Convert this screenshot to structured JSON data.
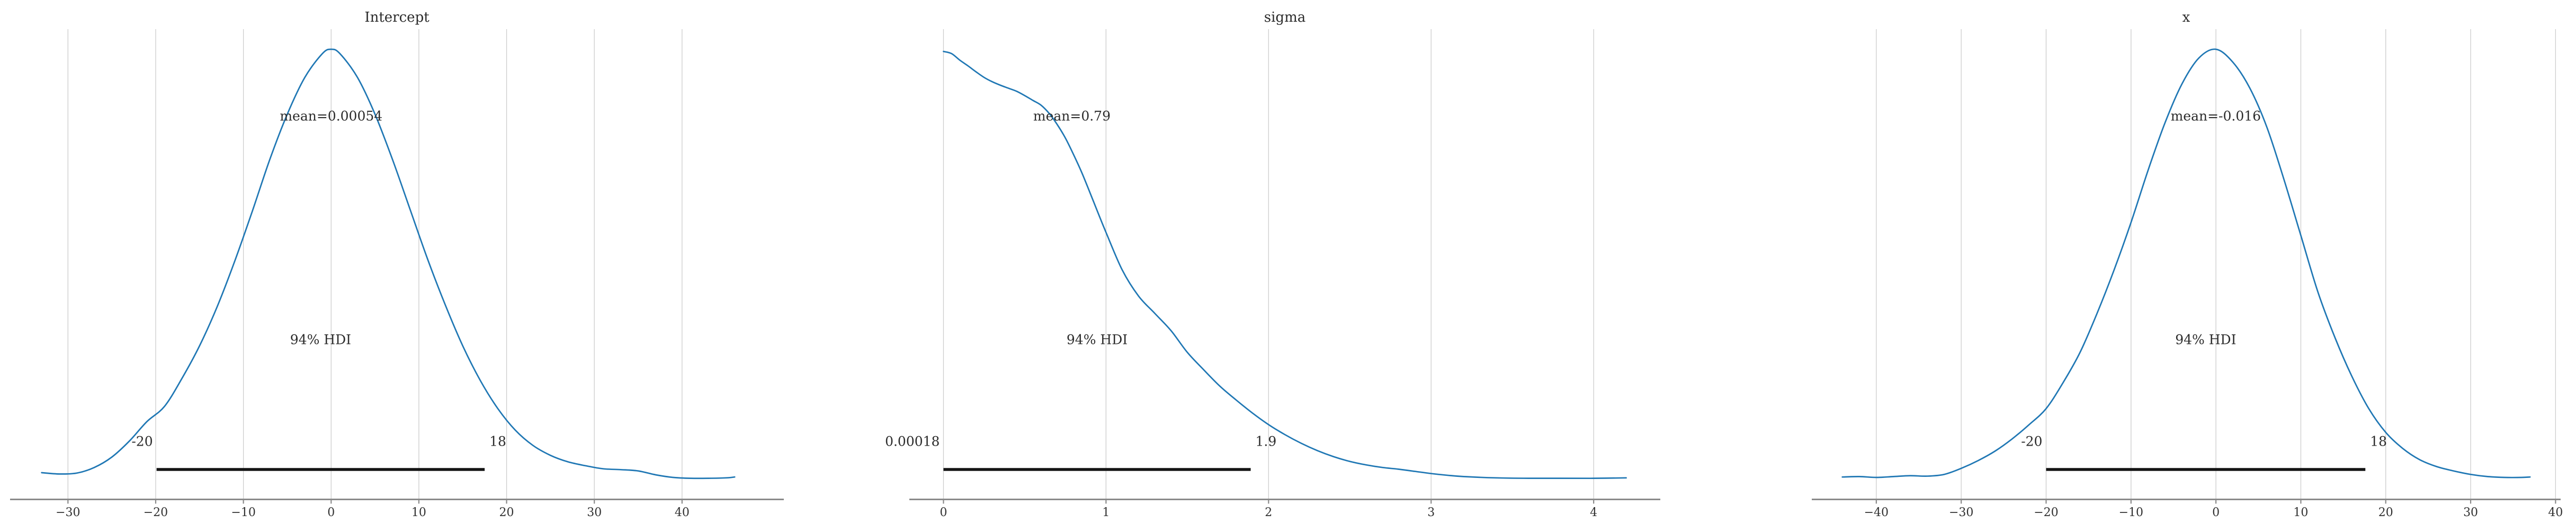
{
  "figure": {
    "background": "#ffffff",
    "kind": "posterior-kde-grid",
    "hdi_probability": "94%"
  },
  "style": {
    "curve_color": "#1f77b4",
    "grid_color": "#cccccc",
    "spine_color": "#8a8a8a",
    "hdi_line_color": "#141414",
    "text_color": "#2b2b2b",
    "tick_text_color": "#303030"
  },
  "chart_data": [
    {
      "type": "line",
      "title": "Intercept",
      "mean_value": 0.00054,
      "mean_label": "mean=0.00054",
      "hdi_text": "94% HDI",
      "hdi_low_label": "-20",
      "hdi_high_label": "18",
      "hdi_interval": [
        -19.9,
        17.5
      ],
      "xlim": [
        -36.6,
        51.6
      ],
      "xticks": [
        -30,
        -20,
        -10,
        0,
        10,
        20,
        30,
        40
      ],
      "xtick_labels": [
        "−30",
        "−20",
        "−10",
        "0",
        "10",
        "20",
        "30",
        "40"
      ],
      "grid": true,
      "legend": "none",
      "kde": {
        "x": [
          -33,
          -31,
          -29,
          -27,
          -25,
          -23,
          -21,
          -19,
          -17,
          -15,
          -13,
          -11,
          -9,
          -7,
          -5,
          -3,
          -1,
          0,
          1,
          3,
          5,
          7,
          9,
          11,
          13,
          15,
          17,
          19,
          21,
          23,
          25,
          27,
          29,
          31,
          33,
          35,
          37,
          39,
          41,
          43,
          45,
          46
        ],
        "density": [
          0.022,
          0.019,
          0.021,
          0.034,
          0.058,
          0.095,
          0.14,
          0.175,
          0.24,
          0.315,
          0.405,
          0.51,
          0.625,
          0.745,
          0.85,
          0.935,
          0.99,
          1.0,
          0.99,
          0.935,
          0.85,
          0.745,
          0.63,
          0.515,
          0.41,
          0.315,
          0.235,
          0.17,
          0.12,
          0.085,
          0.062,
          0.047,
          0.038,
          0.031,
          0.029,
          0.026,
          0.017,
          0.011,
          0.009,
          0.009,
          0.01,
          0.012
        ]
      }
    },
    {
      "type": "line",
      "title": "sigma",
      "mean_value": 0.79,
      "mean_label": "mean=0.79",
      "hdi_text": "94% HDI",
      "hdi_low_label": "0.00018",
      "hdi_high_label": "1.9",
      "hdi_interval": [
        0.0,
        1.89
      ],
      "xlim": [
        -0.21,
        4.41
      ],
      "xticks": [
        0,
        1,
        2,
        3,
        4
      ],
      "xtick_labels": [
        "0",
        "1",
        "2",
        "3",
        "4"
      ],
      "grid": true,
      "legend": "none",
      "kde": {
        "x": [
          0,
          0.05,
          0.1,
          0.15,
          0.2,
          0.25,
          0.3,
          0.35,
          0.4,
          0.45,
          0.5,
          0.55,
          0.6,
          0.65,
          0.7,
          0.75,
          0.8,
          0.85,
          0.9,
          0.95,
          1.0,
          1.1,
          1.2,
          1.3,
          1.4,
          1.5,
          1.6,
          1.7,
          1.8,
          1.9,
          2.0,
          2.1,
          2.2,
          2.3,
          2.4,
          2.5,
          2.6,
          2.7,
          2.8,
          2.9,
          3.0,
          3.1,
          3.2,
          3.4,
          3.6,
          3.8,
          4.0,
          4.2
        ],
        "density": [
          0.995,
          0.99,
          0.975,
          0.962,
          0.948,
          0.935,
          0.925,
          0.917,
          0.91,
          0.903,
          0.893,
          0.882,
          0.871,
          0.852,
          0.826,
          0.795,
          0.757,
          0.716,
          0.67,
          0.623,
          0.577,
          0.49,
          0.43,
          0.39,
          0.35,
          0.3,
          0.26,
          0.222,
          0.19,
          0.16,
          0.133,
          0.11,
          0.09,
          0.073,
          0.059,
          0.048,
          0.04,
          0.034,
          0.03,
          0.025,
          0.02,
          0.016,
          0.013,
          0.01,
          0.009,
          0.009,
          0.009,
          0.01
        ]
      }
    },
    {
      "type": "line",
      "title": "x",
      "mean_value": -0.016,
      "mean_label": "mean=-0.016",
      "hdi_text": "94% HDI",
      "hdi_low_label": "-20",
      "hdi_high_label": "18",
      "hdi_interval": [
        -20.0,
        17.6
      ],
      "xlim": [
        -47.6,
        40.6
      ],
      "xticks": [
        -40,
        -30,
        -20,
        -10,
        0,
        10,
        20,
        30,
        40
      ],
      "xtick_labels": [
        "−40",
        "−30",
        "−20",
        "−10",
        "0",
        "10",
        "20",
        "30",
        "40"
      ],
      "grid": true,
      "legend": "none",
      "kde": {
        "x": [
          -44,
          -42,
          -40,
          -38,
          -36,
          -34,
          -32,
          -30,
          -28,
          -26,
          -24,
          -22,
          -20,
          -18,
          -16,
          -14,
          -12,
          -10,
          -8,
          -6,
          -4,
          -2,
          0,
          2,
          4,
          6,
          8,
          10,
          12,
          14,
          16,
          18,
          20,
          22,
          24,
          26,
          28,
          30,
          32,
          34,
          36,
          37
        ],
        "density": [
          0.012,
          0.013,
          0.011,
          0.013,
          0.015,
          0.014,
          0.018,
          0.032,
          0.05,
          0.072,
          0.1,
          0.133,
          0.17,
          0.23,
          0.3,
          0.39,
          0.49,
          0.6,
          0.72,
          0.83,
          0.92,
          0.98,
          1.0,
          0.97,
          0.91,
          0.82,
          0.7,
          0.57,
          0.44,
          0.335,
          0.245,
          0.17,
          0.115,
          0.078,
          0.052,
          0.036,
          0.026,
          0.018,
          0.013,
          0.011,
          0.011,
          0.012
        ]
      }
    }
  ]
}
